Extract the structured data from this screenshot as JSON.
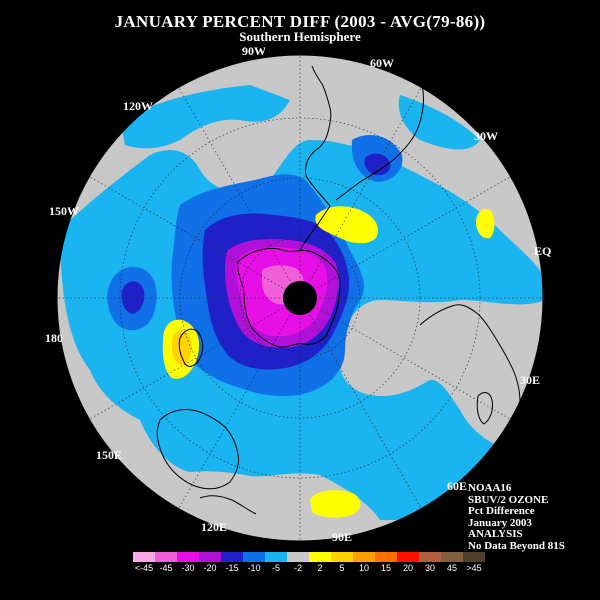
{
  "title": "JANUARY PERCENT DIFF (2003 - AVG(79-86))",
  "subtitle": "Southern Hemisphere",
  "longitude_labels": {
    "w90": "90W",
    "w60": "60W",
    "w30": "30W",
    "w120": "120W",
    "w150": "150W",
    "eq": "EQ",
    "e180": "180",
    "e30": "30E",
    "e150": "150E",
    "e60": "60E",
    "e120": "120E",
    "e90": "90E"
  },
  "info": {
    "satellite": "NOAA16",
    "instrument": "SBUV/2 OZONE",
    "product": "Pct Difference",
    "period": "January 2003",
    "type": "ANALYSIS",
    "note": "No Data Beyond 81S"
  },
  "legend": {
    "colors": [
      "#f7a8e6",
      "#ef5fd8",
      "#e60fe6",
      "#b010d8",
      "#2020c8",
      "#1070e8",
      "#1ab4f0",
      "#c8c8c8",
      "#ffff00",
      "#ffd200",
      "#ffa000",
      "#ff6e00",
      "#ff1000",
      "#b06040",
      "#806040",
      "#504030"
    ],
    "labels": [
      "<-45",
      "-45",
      "-30",
      "-20",
      "-15",
      "-10",
      "-5",
      "-2",
      "2",
      "5",
      "10",
      "15",
      "20",
      "30",
      "45",
      ">45"
    ]
  },
  "map_colors": {
    "outside": "#000000",
    "near_zero": "#c8c8c8",
    "minus5": "#1ab4f0",
    "minus10": "#1070e8",
    "minus15": "#2020c8",
    "minus20": "#b010d8",
    "minus30": "#e60fe6",
    "minus45": "#ef5fd8",
    "plus2": "#ffff00",
    "plus5": "#ffd200",
    "pole_no_data": "#000000"
  }
}
